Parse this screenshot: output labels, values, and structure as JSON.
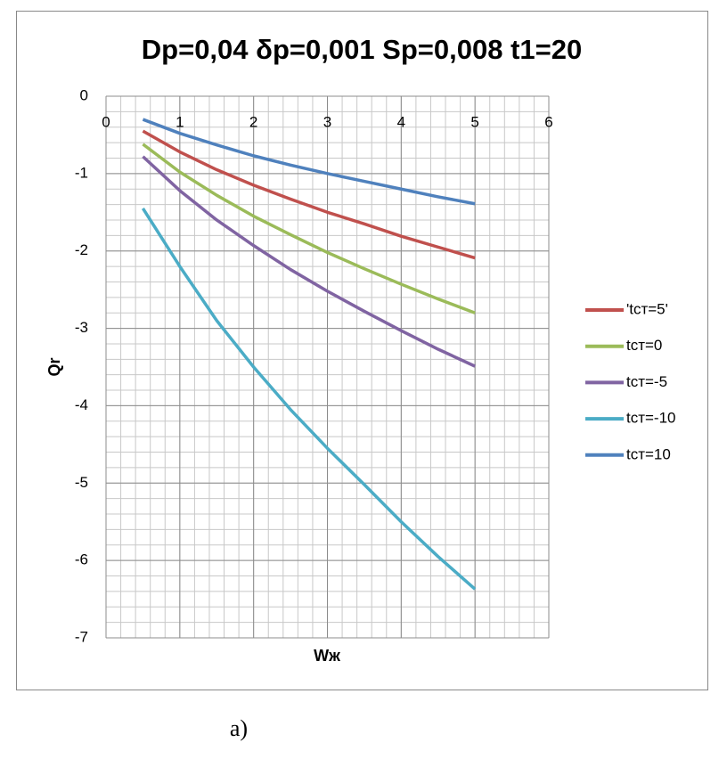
{
  "chart_data": {
    "type": "line",
    "title": "Dp=0,04 δp=0,001 Sp=0,008 t1=20",
    "xlabel": "Wж",
    "ylabel": "Qr",
    "caption": "a)",
    "x": [
      0.5,
      1,
      1.5,
      2,
      2.5,
      3,
      3.5,
      4,
      4.5,
      5
    ],
    "series": [
      {
        "name": "'tст=5'",
        "color": "#c0504d",
        "values": [
          -0.45,
          -0.72,
          -0.95,
          -1.15,
          -1.33,
          -1.5,
          -1.65,
          -1.81,
          -1.95,
          -2.09
        ]
      },
      {
        "name": "tст=0",
        "color": "#9bbb59",
        "values": [
          -0.62,
          -0.98,
          -1.28,
          -1.55,
          -1.79,
          -2.02,
          -2.23,
          -2.43,
          -2.62,
          -2.8
        ]
      },
      {
        "name": "tст=-5",
        "color": "#8064a2",
        "values": [
          -0.78,
          -1.22,
          -1.6,
          -1.93,
          -2.24,
          -2.52,
          -2.78,
          -3.03,
          -3.27,
          -3.49
        ]
      },
      {
        "name": "tст=-10",
        "color": "#4bacc6",
        "values": [
          -1.45,
          -2.2,
          -2.9,
          -3.5,
          -4.05,
          -4.55,
          -5.02,
          -5.5,
          -5.95,
          -6.37
        ]
      },
      {
        "name": "tст=10",
        "color": "#4f81bd",
        "values": [
          -0.3,
          -0.48,
          -0.63,
          -0.77,
          -0.89,
          -1.0,
          -1.1,
          -1.2,
          -1.3,
          -1.39
        ]
      }
    ],
    "xlim": [
      0,
      6
    ],
    "xticks": [
      0,
      1,
      2,
      3,
      4,
      5,
      6
    ],
    "ylim": [
      -7,
      0
    ],
    "yticks": [
      -7,
      -6,
      -5,
      -4,
      -3,
      -2,
      -1,
      0
    ],
    "grid": true,
    "minor_grid": {
      "x": 0.2,
      "y": 0.2
    },
    "legend": "right"
  }
}
